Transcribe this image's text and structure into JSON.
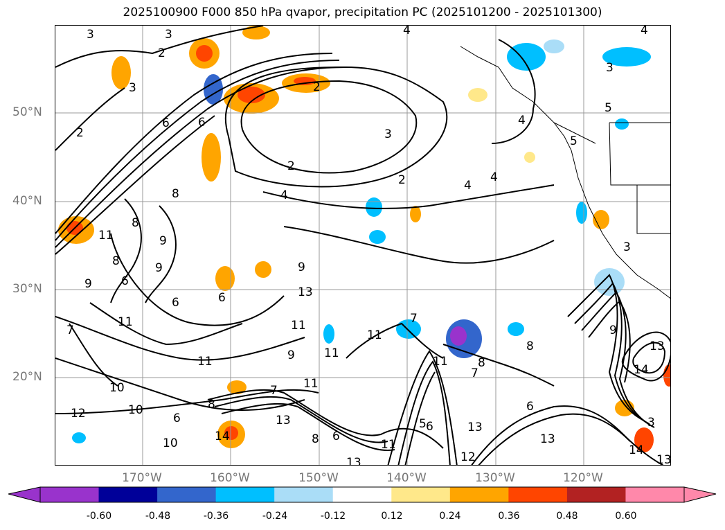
{
  "title": "2025100900 F000 850 hPa qvapor, precipitation PC (2025101200 - 2025101300)",
  "lat_labels": [
    "50°N",
    "40°N",
    "30°N",
    "20°N"
  ],
  "lon_labels": [
    "170°W",
    "160°W",
    "150°W",
    "140°W",
    "130°W",
    "120°W"
  ],
  "contour_labels": [
    "3",
    "3",
    "2",
    "4",
    "4",
    "3",
    "2",
    "6",
    "2",
    "2",
    "3",
    "2",
    "4",
    "5",
    "3",
    "4",
    "5",
    "4",
    "4",
    "6",
    "8",
    "8",
    "9",
    "11",
    "8",
    "9",
    "6",
    "9",
    "6",
    "6",
    "11",
    "10",
    "7",
    "11",
    "9",
    "11",
    "10",
    "6",
    "12",
    "8",
    "13",
    "14",
    "10",
    "7",
    "11",
    "8",
    "13",
    "11",
    "6",
    "9",
    "6",
    "11",
    "5",
    "12",
    "13",
    "13",
    "7",
    "8",
    "8",
    "7",
    "11",
    "6",
    "13",
    "14",
    "13",
    "11",
    "3",
    "3",
    "14",
    "13",
    "9"
  ],
  "colorbar": {
    "ticks": [
      "-0.60",
      "-0.48",
      "-0.36",
      "-0.24",
      "-0.12",
      "0.12",
      "0.24",
      "0.36",
      "0.48",
      "0.60"
    ],
    "colors": [
      "#9933cc",
      "#000099",
      "#3366cc",
      "#00bfff",
      "#aaddf7",
      "#ffffff",
      "#ffe88a",
      "#ffa500",
      "#ff4500",
      "#b22222",
      "#ff88aa"
    ]
  }
}
